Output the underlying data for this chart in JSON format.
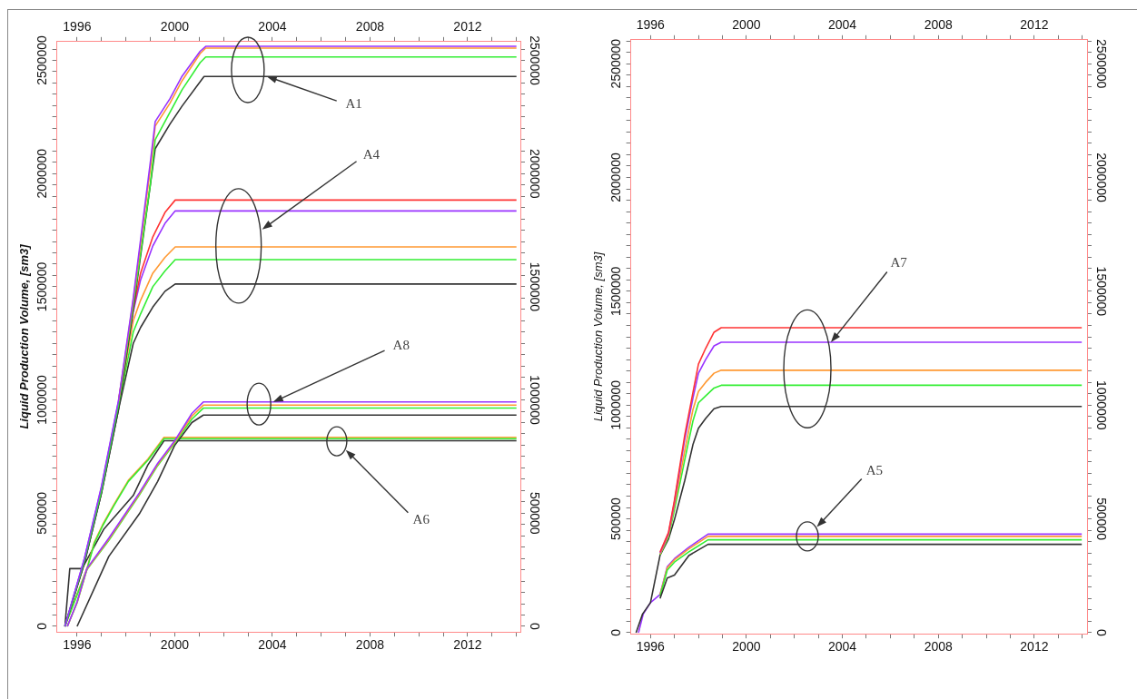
{
  "chart_data": [
    {
      "type": "line",
      "ylabel": "Liquid Production Volume, [sm3]",
      "grid": false,
      "marker": "none",
      "xlim": [
        1995.17,
        2014.16
      ],
      "x2lim": [
        1995.17,
        2014.16
      ],
      "ylim": [
        -25000,
        2583000
      ],
      "y2lim": [
        -25000,
        2583000
      ],
      "xticks": [
        1996,
        {
          "value": 1997,
          "label": null
        },
        {
          "value": 1998,
          "label": null
        },
        {
          "value": 1999,
          "label": null
        },
        2000,
        {
          "value": 2001,
          "label": null
        },
        {
          "value": 2002,
          "label": null
        },
        {
          "value": 2003,
          "label": null
        },
        2004,
        {
          "value": 2005,
          "label": null
        },
        {
          "value": 2006,
          "label": null
        },
        {
          "value": 2007,
          "label": null
        },
        2008,
        {
          "value": 2009,
          "label": null
        },
        {
          "value": 2010,
          "label": null
        },
        {
          "value": 2011,
          "label": null
        },
        2012,
        {
          "value": 2013,
          "label": null
        },
        {
          "value": 2014,
          "label": null
        }
      ],
      "x2ticks": [
        1996,
        {
          "value": 1997,
          "label": null
        },
        {
          "value": 1998,
          "label": null
        },
        {
          "value": 1999,
          "label": null
        },
        2000,
        {
          "value": 2001,
          "label": null
        },
        {
          "value": 2002,
          "label": null
        },
        {
          "value": 2003,
          "label": null
        },
        2004,
        {
          "value": 2005,
          "label": null
        },
        {
          "value": 2006,
          "label": null
        },
        {
          "value": 2007,
          "label": null
        },
        2008,
        {
          "value": 2009,
          "label": null
        },
        {
          "value": 2010,
          "label": null
        },
        {
          "value": 2011,
          "label": null
        },
        2012,
        {
          "value": 2013,
          "label": null
        },
        {
          "value": 2014,
          "label": null
        }
      ],
      "yticks": [
        0,
        {
          "value": 50000,
          "label": null
        },
        {
          "value": 100000,
          "label": null
        },
        {
          "value": 150000,
          "label": null
        },
        {
          "value": 200000,
          "label": null
        },
        {
          "value": 250000,
          "label": null
        },
        {
          "value": 300000,
          "label": null
        },
        {
          "value": 350000,
          "label": null
        },
        {
          "value": 400000,
          "label": null
        },
        {
          "value": 450000,
          "label": null
        },
        500000,
        {
          "value": 550000,
          "label": null
        },
        {
          "value": 600000,
          "label": null
        },
        {
          "value": 650000,
          "label": null
        },
        {
          "value": 700000,
          "label": null
        },
        {
          "value": 750000,
          "label": null
        },
        {
          "value": 800000,
          "label": null
        },
        {
          "value": 850000,
          "label": null
        },
        {
          "value": 900000,
          "label": null
        },
        {
          "value": 950000,
          "label": null
        },
        1000000,
        {
          "value": 1050000,
          "label": null
        },
        {
          "value": 1100000,
          "label": null
        },
        {
          "value": 1150000,
          "label": null
        },
        {
          "value": 1200000,
          "label": null
        },
        {
          "value": 1250000,
          "label": null
        },
        {
          "value": 1300000,
          "label": null
        },
        {
          "value": 1350000,
          "label": null
        },
        {
          "value": 1400000,
          "label": null
        },
        {
          "value": 1450000,
          "label": null
        },
        1500000,
        {
          "value": 1550000,
          "label": null
        },
        {
          "value": 1600000,
          "label": null
        },
        {
          "value": 1650000,
          "label": null
        },
        {
          "value": 1700000,
          "label": null
        },
        {
          "value": 1750000,
          "label": null
        },
        {
          "value": 1800000,
          "label": null
        },
        {
          "value": 1850000,
          "label": null
        },
        {
          "value": 1900000,
          "label": null
        },
        {
          "value": 1950000,
          "label": null
        },
        2000000,
        {
          "value": 2050000,
          "label": null
        },
        {
          "value": 2100000,
          "label": null
        },
        {
          "value": 2150000,
          "label": null
        },
        {
          "value": 2200000,
          "label": null
        },
        {
          "value": 2250000,
          "label": null
        },
        {
          "value": 2300000,
          "label": null
        },
        {
          "value": 2350000,
          "label": null
        },
        {
          "value": 2400000,
          "label": null
        },
        {
          "value": 2450000,
          "label": null
        },
        2500000,
        {
          "value": 2550000,
          "label": null
        }
      ],
      "y2ticks": [
        0,
        {
          "value": 50000,
          "label": null
        },
        {
          "value": 100000,
          "label": null
        },
        {
          "value": 150000,
          "label": null
        },
        {
          "value": 200000,
          "label": null
        },
        {
          "value": 250000,
          "label": null
        },
        {
          "value": 300000,
          "label": null
        },
        {
          "value": 350000,
          "label": null
        },
        {
          "value": 400000,
          "label": null
        },
        {
          "value": 450000,
          "label": null
        },
        500000,
        {
          "value": 550000,
          "label": null
        },
        {
          "value": 600000,
          "label": null
        },
        {
          "value": 650000,
          "label": null
        },
        {
          "value": 700000,
          "label": null
        },
        {
          "value": 750000,
          "label": null
        },
        {
          "value": 800000,
          "label": null
        },
        {
          "value": 850000,
          "label": null
        },
        {
          "value": 900000,
          "label": null
        },
        {
          "value": 950000,
          "label": null
        },
        1000000,
        {
          "value": 1050000,
          "label": null
        },
        {
          "value": 1100000,
          "label": null
        },
        {
          "value": 1150000,
          "label": null
        },
        {
          "value": 1200000,
          "label": null
        },
        {
          "value": 1250000,
          "label": null
        },
        {
          "value": 1300000,
          "label": null
        },
        {
          "value": 1350000,
          "label": null
        },
        {
          "value": 1400000,
          "label": null
        },
        {
          "value": 1450000,
          "label": null
        },
        1500000,
        {
          "value": 1550000,
          "label": null
        },
        {
          "value": 1600000,
          "label": null
        },
        {
          "value": 1650000,
          "label": null
        },
        {
          "value": 1700000,
          "label": null
        },
        {
          "value": 1750000,
          "label": null
        },
        {
          "value": 1800000,
          "label": null
        },
        {
          "value": 1850000,
          "label": null
        },
        {
          "value": 1900000,
          "label": null
        },
        {
          "value": 1950000,
          "label": null
        },
        2000000,
        {
          "value": 2050000,
          "label": null
        },
        {
          "value": 2100000,
          "label": null
        },
        {
          "value": 2150000,
          "label": null
        },
        {
          "value": 2200000,
          "label": null
        },
        {
          "value": 2250000,
          "label": null
        },
        {
          "value": 2300000,
          "label": null
        },
        {
          "value": 2350000,
          "label": null
        },
        {
          "value": 2400000,
          "label": null
        },
        {
          "value": 2450000,
          "label": null
        },
        2500000,
        {
          "value": 2550000,
          "label": null
        }
      ],
      "series": [
        {
          "color": "#9933ff",
          "x": [
            1995.5,
            1996.3,
            1997.0,
            1997.7,
            1998.3,
            1999.0,
            1999.2,
            1999.8,
            2000.3,
            2001.04,
            2001.27,
            2014.0
          ],
          "values": [
            0,
            300000,
            620000,
            1000000,
            1450000,
            2050000,
            2230000,
            2330000,
            2430000,
            2540000,
            2562000,
            2562000
          ]
        },
        {
          "color": "#ff9933",
          "x": [
            1997.7,
            1998.3,
            1999.0,
            1999.2,
            1999.8,
            2000.3,
            2001.04,
            2001.27,
            2014.0
          ],
          "values": [
            995000,
            1440000,
            2020000,
            2210000,
            2310000,
            2410000,
            2530000,
            2554000,
            2554000
          ]
        },
        {
          "color": "#33ee33",
          "x": [
            1995.5,
            1996.3,
            1997.0,
            1997.7,
            1998.3,
            1999.0,
            1999.2,
            1999.8,
            2000.3,
            2001.04,
            2001.27,
            2014.0
          ],
          "values": [
            0,
            290000,
            600000,
            980000,
            1420000,
            1950000,
            2150000,
            2270000,
            2370000,
            2490000,
            2515000,
            2515000
          ]
        },
        {
          "color": "#333333",
          "x": [
            1995.5,
            1996.3,
            1997.0,
            1997.7,
            1998.3,
            1999.0,
            1999.2,
            1999.8,
            2000.3,
            2001.2,
            2014.0
          ],
          "values": [
            0,
            280000,
            590000,
            960000,
            1400000,
            1950000,
            2110000,
            2218000,
            2298000,
            2429000,
            2429000
          ]
        },
        {
          "color": "#ff3333",
          "x": [
            1997.7,
            1998.3,
            1998.6,
            1999.1,
            1999.6,
            2000.02,
            2014.0
          ],
          "values": [
            1000000,
            1400000,
            1560000,
            1720000,
            1828000,
            1883000,
            1883000
          ]
        },
        {
          "color": "#9933ff",
          "x": [
            1995.5,
            1996.3,
            1997.0,
            1997.7,
            1998.3,
            1998.6,
            1999.1,
            1999.6,
            2000.02,
            2014.0
          ],
          "values": [
            0,
            300000,
            615000,
            995000,
            1390000,
            1530000,
            1680000,
            1780000,
            1835000,
            1835000
          ]
        },
        {
          "color": "#ff9933",
          "x": [
            1997.7,
            1998.3,
            1998.6,
            1999.1,
            1999.6,
            2000.02,
            2014.0
          ],
          "values": [
            985000,
            1350000,
            1440000,
            1560000,
            1630000,
            1676000,
            1676000
          ]
        },
        {
          "color": "#33ee33",
          "x": [
            1995.5,
            1996.3,
            1997.0,
            1997.7,
            1998.3,
            1998.6,
            1999.1,
            1999.6,
            2000.02,
            2014.0
          ],
          "values": [
            0,
            290000,
            600000,
            975000,
            1300000,
            1380000,
            1500000,
            1570000,
            1620000,
            1620000
          ]
        },
        {
          "color": "#333333",
          "x": [
            1995.5,
            1996.3,
            1997.0,
            1997.7,
            1998.3,
            1998.6,
            1999.1,
            1999.6,
            2000.02,
            2014.0
          ],
          "values": [
            0,
            280000,
            590000,
            960000,
            1250000,
            1320000,
            1410000,
            1480000,
            1512000,
            1512000
          ]
        },
        {
          "color": "#9933ff",
          "x": [
            1995.6,
            1996.0,
            1996.4,
            1997.3,
            1998.55,
            1999.3,
            2000.0,
            2000.7,
            2001.17,
            2014.0
          ],
          "values": [
            0,
            108000,
            255000,
            390000,
            590000,
            720000,
            820000,
            940000,
            991000,
            991000
          ]
        },
        {
          "color": "#ff9933",
          "x": [
            1995.6,
            1996.0,
            1996.4,
            1997.3,
            1998.55,
            1999.3,
            2000.0,
            2000.7,
            2001.17,
            2014.0
          ],
          "values": [
            0,
            106000,
            252000,
            385000,
            585000,
            715000,
            815000,
            928000,
            977000,
            977000
          ]
        },
        {
          "color": "#33ee33",
          "x": [
            1995.6,
            1996.0,
            1996.4,
            1997.3,
            1998.55,
            1999.3,
            2000.0,
            2000.7,
            2001.17,
            2014.0
          ],
          "values": [
            0,
            104000,
            250000,
            380000,
            580000,
            710000,
            810000,
            915000,
            964000,
            964000
          ]
        },
        {
          "color": "#333333",
          "x": [
            1996.0,
            1997.3,
            1998.55,
            1999.3,
            2000.0,
            2000.7,
            2001.17,
            2014.0
          ],
          "values": [
            0,
            309000,
            497000,
            640000,
            800000,
            900000,
            933000,
            933000
          ]
        },
        {
          "color": "#33ee33",
          "x": [
            1995.5,
            1996.4,
            1996.7,
            1997.05,
            1997.5,
            1998.1,
            1998.9,
            1999.56,
            2014.0
          ],
          "values": [
            0,
            250000,
            365000,
            445000,
            532000,
            640000,
            734000,
            829000,
            829000
          ]
        },
        {
          "color": "#ff9933",
          "x": [
            1995.5,
            1996.4,
            1996.7,
            1997.05,
            1997.5,
            1998.1,
            1998.9,
            1999.56,
            2014.0
          ],
          "values": [
            0,
            255000,
            370000,
            450000,
            537000,
            645000,
            739000,
            835000,
            835000
          ]
        },
        {
          "color": "#333333",
          "x": [
            1995.5,
            1995.7,
            1996.2,
            1997.1,
            1998.3,
            1998.9,
            1999.56,
            2014.0
          ],
          "values": [
            0,
            255000,
            255000,
            430000,
            578000,
            713000,
            820000,
            820000
          ]
        }
      ],
      "annotations": [
        {
          "text": "A1",
          "x": 2003.77,
          "y": 2429000
        },
        "A4",
        {
          "text": "A8",
          "x": 2004.03,
          "y": 991000
        },
        "A6"
      ]
    },
    {
      "type": "line",
      "ylabel": "Liquid Production Volume, [sm3]",
      "grid": false,
      "marker": "none",
      "xlim": [
        1995.18,
        2014.2
      ],
      "x2lim": [
        1995.18,
        2014.2
      ],
      "ylim": [
        -5000,
        2605000
      ],
      "y2lim": [
        -5000,
        2605000
      ],
      "xticks": [
        1996,
        {
          "value": 1997,
          "label": null
        },
        {
          "value": 1998,
          "label": null
        },
        {
          "value": 1999,
          "label": null
        },
        2000,
        {
          "value": 2001,
          "label": null
        },
        {
          "value": 2002,
          "label": null
        },
        {
          "value": 2003,
          "label": null
        },
        2004,
        {
          "value": 2005,
          "label": null
        },
        {
          "value": 2006,
          "label": null
        },
        {
          "value": 2007,
          "label": null
        },
        2008,
        {
          "value": 2009,
          "label": null
        },
        {
          "value": 2010,
          "label": null
        },
        {
          "value": 2011,
          "label": null
        },
        2012,
        {
          "value": 2013,
          "label": null
        },
        {
          "value": 2014,
          "label": null
        }
      ],
      "x2ticks": [
        1996,
        {
          "value": 1997,
          "label": null
        },
        {
          "value": 1998,
          "label": null
        },
        {
          "value": 1999,
          "label": null
        },
        2000,
        {
          "value": 2001,
          "label": null
        },
        {
          "value": 2002,
          "label": null
        },
        {
          "value": 2003,
          "label": null
        },
        2004,
        {
          "value": 2005,
          "label": null
        },
        {
          "value": 2006,
          "label": null
        },
        {
          "value": 2007,
          "label": null
        },
        2008,
        {
          "value": 2009,
          "label": null
        },
        {
          "value": 2010,
          "label": null
        },
        {
          "value": 2011,
          "label": null
        },
        2012,
        {
          "value": 2013,
          "label": null
        },
        {
          "value": 2014,
          "label": null
        }
      ],
      "yticks": [
        0,
        {
          "value": 50000,
          "label": null
        },
        {
          "value": 100000,
          "label": null
        },
        {
          "value": 150000,
          "label": null
        },
        {
          "value": 200000,
          "label": null
        },
        {
          "value": 250000,
          "label": null
        },
        {
          "value": 300000,
          "label": null
        },
        {
          "value": 350000,
          "label": null
        },
        {
          "value": 400000,
          "label": null
        },
        {
          "value": 450000,
          "label": null
        },
        500000,
        {
          "value": 550000,
          "label": null
        },
        {
          "value": 600000,
          "label": null
        },
        {
          "value": 650000,
          "label": null
        },
        {
          "value": 700000,
          "label": null
        },
        {
          "value": 750000,
          "label": null
        },
        {
          "value": 800000,
          "label": null
        },
        {
          "value": 850000,
          "label": null
        },
        {
          "value": 900000,
          "label": null
        },
        {
          "value": 950000,
          "label": null
        },
        1000000,
        {
          "value": 1050000,
          "label": null
        },
        {
          "value": 1100000,
          "label": null
        },
        {
          "value": 1150000,
          "label": null
        },
        {
          "value": 1200000,
          "label": null
        },
        {
          "value": 1250000,
          "label": null
        },
        {
          "value": 1300000,
          "label": null
        },
        {
          "value": 1350000,
          "label": null
        },
        {
          "value": 1400000,
          "label": null
        },
        {
          "value": 1450000,
          "label": null
        },
        1500000,
        {
          "value": 1550000,
          "label": null
        },
        {
          "value": 1600000,
          "label": null
        },
        {
          "value": 1650000,
          "label": null
        },
        {
          "value": 1700000,
          "label": null
        },
        {
          "value": 1750000,
          "label": null
        },
        {
          "value": 1800000,
          "label": null
        },
        {
          "value": 1850000,
          "label": null
        },
        {
          "value": 1900000,
          "label": null
        },
        {
          "value": 1950000,
          "label": null
        },
        2000000,
        {
          "value": 2050000,
          "label": null
        },
        {
          "value": 2100000,
          "label": null
        },
        {
          "value": 2150000,
          "label": null
        },
        {
          "value": 2200000,
          "label": null
        },
        {
          "value": 2250000,
          "label": null
        },
        {
          "value": 2300000,
          "label": null
        },
        {
          "value": 2350000,
          "label": null
        },
        {
          "value": 2400000,
          "label": null
        },
        {
          "value": 2450000,
          "label": null
        },
        2500000,
        {
          "value": 2550000,
          "label": null
        },
        {
          "value": 2600000,
          "label": null
        }
      ],
      "y2ticks": [
        0,
        {
          "value": 50000,
          "label": null
        },
        {
          "value": 100000,
          "label": null
        },
        {
          "value": 150000,
          "label": null
        },
        {
          "value": 200000,
          "label": null
        },
        {
          "value": 250000,
          "label": null
        },
        {
          "value": 300000,
          "label": null
        },
        {
          "value": 350000,
          "label": null
        },
        {
          "value": 400000,
          "label": null
        },
        {
          "value": 450000,
          "label": null
        },
        500000,
        {
          "value": 550000,
          "label": null
        },
        {
          "value": 600000,
          "label": null
        },
        {
          "value": 650000,
          "label": null
        },
        {
          "value": 700000,
          "label": null
        },
        {
          "value": 750000,
          "label": null
        },
        {
          "value": 800000,
          "label": null
        },
        {
          "value": 850000,
          "label": null
        },
        {
          "value": 900000,
          "label": null
        },
        {
          "value": 950000,
          "label": null
        },
        1000000,
        {
          "value": 1050000,
          "label": null
        },
        {
          "value": 1100000,
          "label": null
        },
        {
          "value": 1150000,
          "label": null
        },
        {
          "value": 1200000,
          "label": null
        },
        {
          "value": 1250000,
          "label": null
        },
        {
          "value": 1300000,
          "label": null
        },
        {
          "value": 1350000,
          "label": null
        },
        {
          "value": 1400000,
          "label": null
        },
        {
          "value": 1450000,
          "label": null
        },
        1500000,
        {
          "value": 1550000,
          "label": null
        },
        {
          "value": 1600000,
          "label": null
        },
        {
          "value": 1650000,
          "label": null
        },
        {
          "value": 1700000,
          "label": null
        },
        {
          "value": 1750000,
          "label": null
        },
        {
          "value": 1800000,
          "label": null
        },
        {
          "value": 1850000,
          "label": null
        },
        {
          "value": 1900000,
          "label": null
        },
        {
          "value": 1950000,
          "label": null
        },
        2000000,
        {
          "value": 2050000,
          "label": null
        },
        {
          "value": 2100000,
          "label": null
        },
        {
          "value": 2150000,
          "label": null
        },
        {
          "value": 2200000,
          "label": null
        },
        {
          "value": 2250000,
          "label": null
        },
        {
          "value": 2300000,
          "label": null
        },
        {
          "value": 2350000,
          "label": null
        },
        {
          "value": 2400000,
          "label": null
        },
        {
          "value": 2450000,
          "label": null
        },
        2500000,
        {
          "value": 2550000,
          "label": null
        },
        {
          "value": 2600000,
          "label": null
        }
      ],
      "series": [
        {
          "color": "#ff3333",
          "x": [
            1996.4,
            1996.75,
            1997.0,
            1997.43,
            1997.77,
            1998.0,
            1998.3,
            1998.65,
            1998.95,
            2013.98
          ],
          "values": [
            354000,
            440000,
            583000,
            869000,
            1055000,
            1180000,
            1249000,
            1320000,
            1340000,
            1340000
          ]
        },
        {
          "color": "#9933ff",
          "x": [
            1996.4,
            1996.75,
            1997.0,
            1997.43,
            1997.77,
            1998.0,
            1998.3,
            1998.65,
            1998.95,
            2013.98
          ],
          "values": [
            350000,
            435000,
            575000,
            850000,
            1030000,
            1140000,
            1200000,
            1260000,
            1276000,
            1276000
          ]
        },
        {
          "color": "#ff9933",
          "x": [
            1996.4,
            1996.75,
            1997.0,
            1997.43,
            1997.77,
            1998.0,
            1998.3,
            1998.65,
            1998.95,
            2013.98
          ],
          "values": [
            345000,
            428000,
            560000,
            800000,
            980000,
            1060000,
            1100000,
            1140000,
            1153000,
            1153000
          ]
        },
        {
          "color": "#33ee33",
          "x": [
            1996.4,
            1996.75,
            1997.0,
            1997.43,
            1997.77,
            1998.0,
            1998.3,
            1998.65,
            1998.95,
            2013.98
          ],
          "values": [
            342000,
            420000,
            540000,
            760000,
            930000,
            1010000,
            1040000,
            1075000,
            1087000,
            1087000
          ]
        },
        {
          "color": "#333333",
          "x": [
            1995.4,
            1995.67,
            1996.0,
            1996.4,
            1996.75,
            1997.0,
            1997.43,
            1997.77,
            1998.0,
            1998.3,
            1998.65,
            1998.95,
            2013.98
          ],
          "values": [
            0,
            82000,
            132000,
            340000,
            411000,
            497000,
            669000,
            826000,
            898000,
            941000,
            984000,
            994000,
            994000
          ]
        },
        {
          "color": "#333333",
          "x": [
            1996.4,
            1996.7,
            1997.0,
            1997.6,
            1998.4,
            2013.98
          ],
          "values": [
            150000,
            240000,
            253000,
            339000,
            388000,
            388000
          ]
        },
        {
          "color": "#33ee33",
          "x": [
            1996.4,
            1996.7,
            1997.0,
            1997.6,
            1998.4,
            2013.98
          ],
          "values": [
            160000,
            275000,
            310000,
            355000,
            408000,
            408000
          ]
        },
        {
          "color": "#ff9933",
          "x": [
            1996.4,
            1996.7,
            1997.0,
            1997.6,
            1998.4,
            2013.98
          ],
          "values": [
            166000,
            285000,
            320000,
            368000,
            423000,
            423000
          ]
        },
        {
          "color": "#9933ff",
          "x": [
            1995.5,
            1995.7,
            1996.0,
            1996.4,
            1996.7,
            1997.0,
            1997.6,
            1998.4,
            2013.98
          ],
          "values": [
            0,
            82000,
            132000,
            168000,
            290000,
            325000,
            375000,
            433000,
            433000
          ]
        }
      ],
      "annotations": [
        {
          "text": "A7",
          "x": 2003.52,
          "y": 1276000
        },
        "A5"
      ]
    }
  ]
}
